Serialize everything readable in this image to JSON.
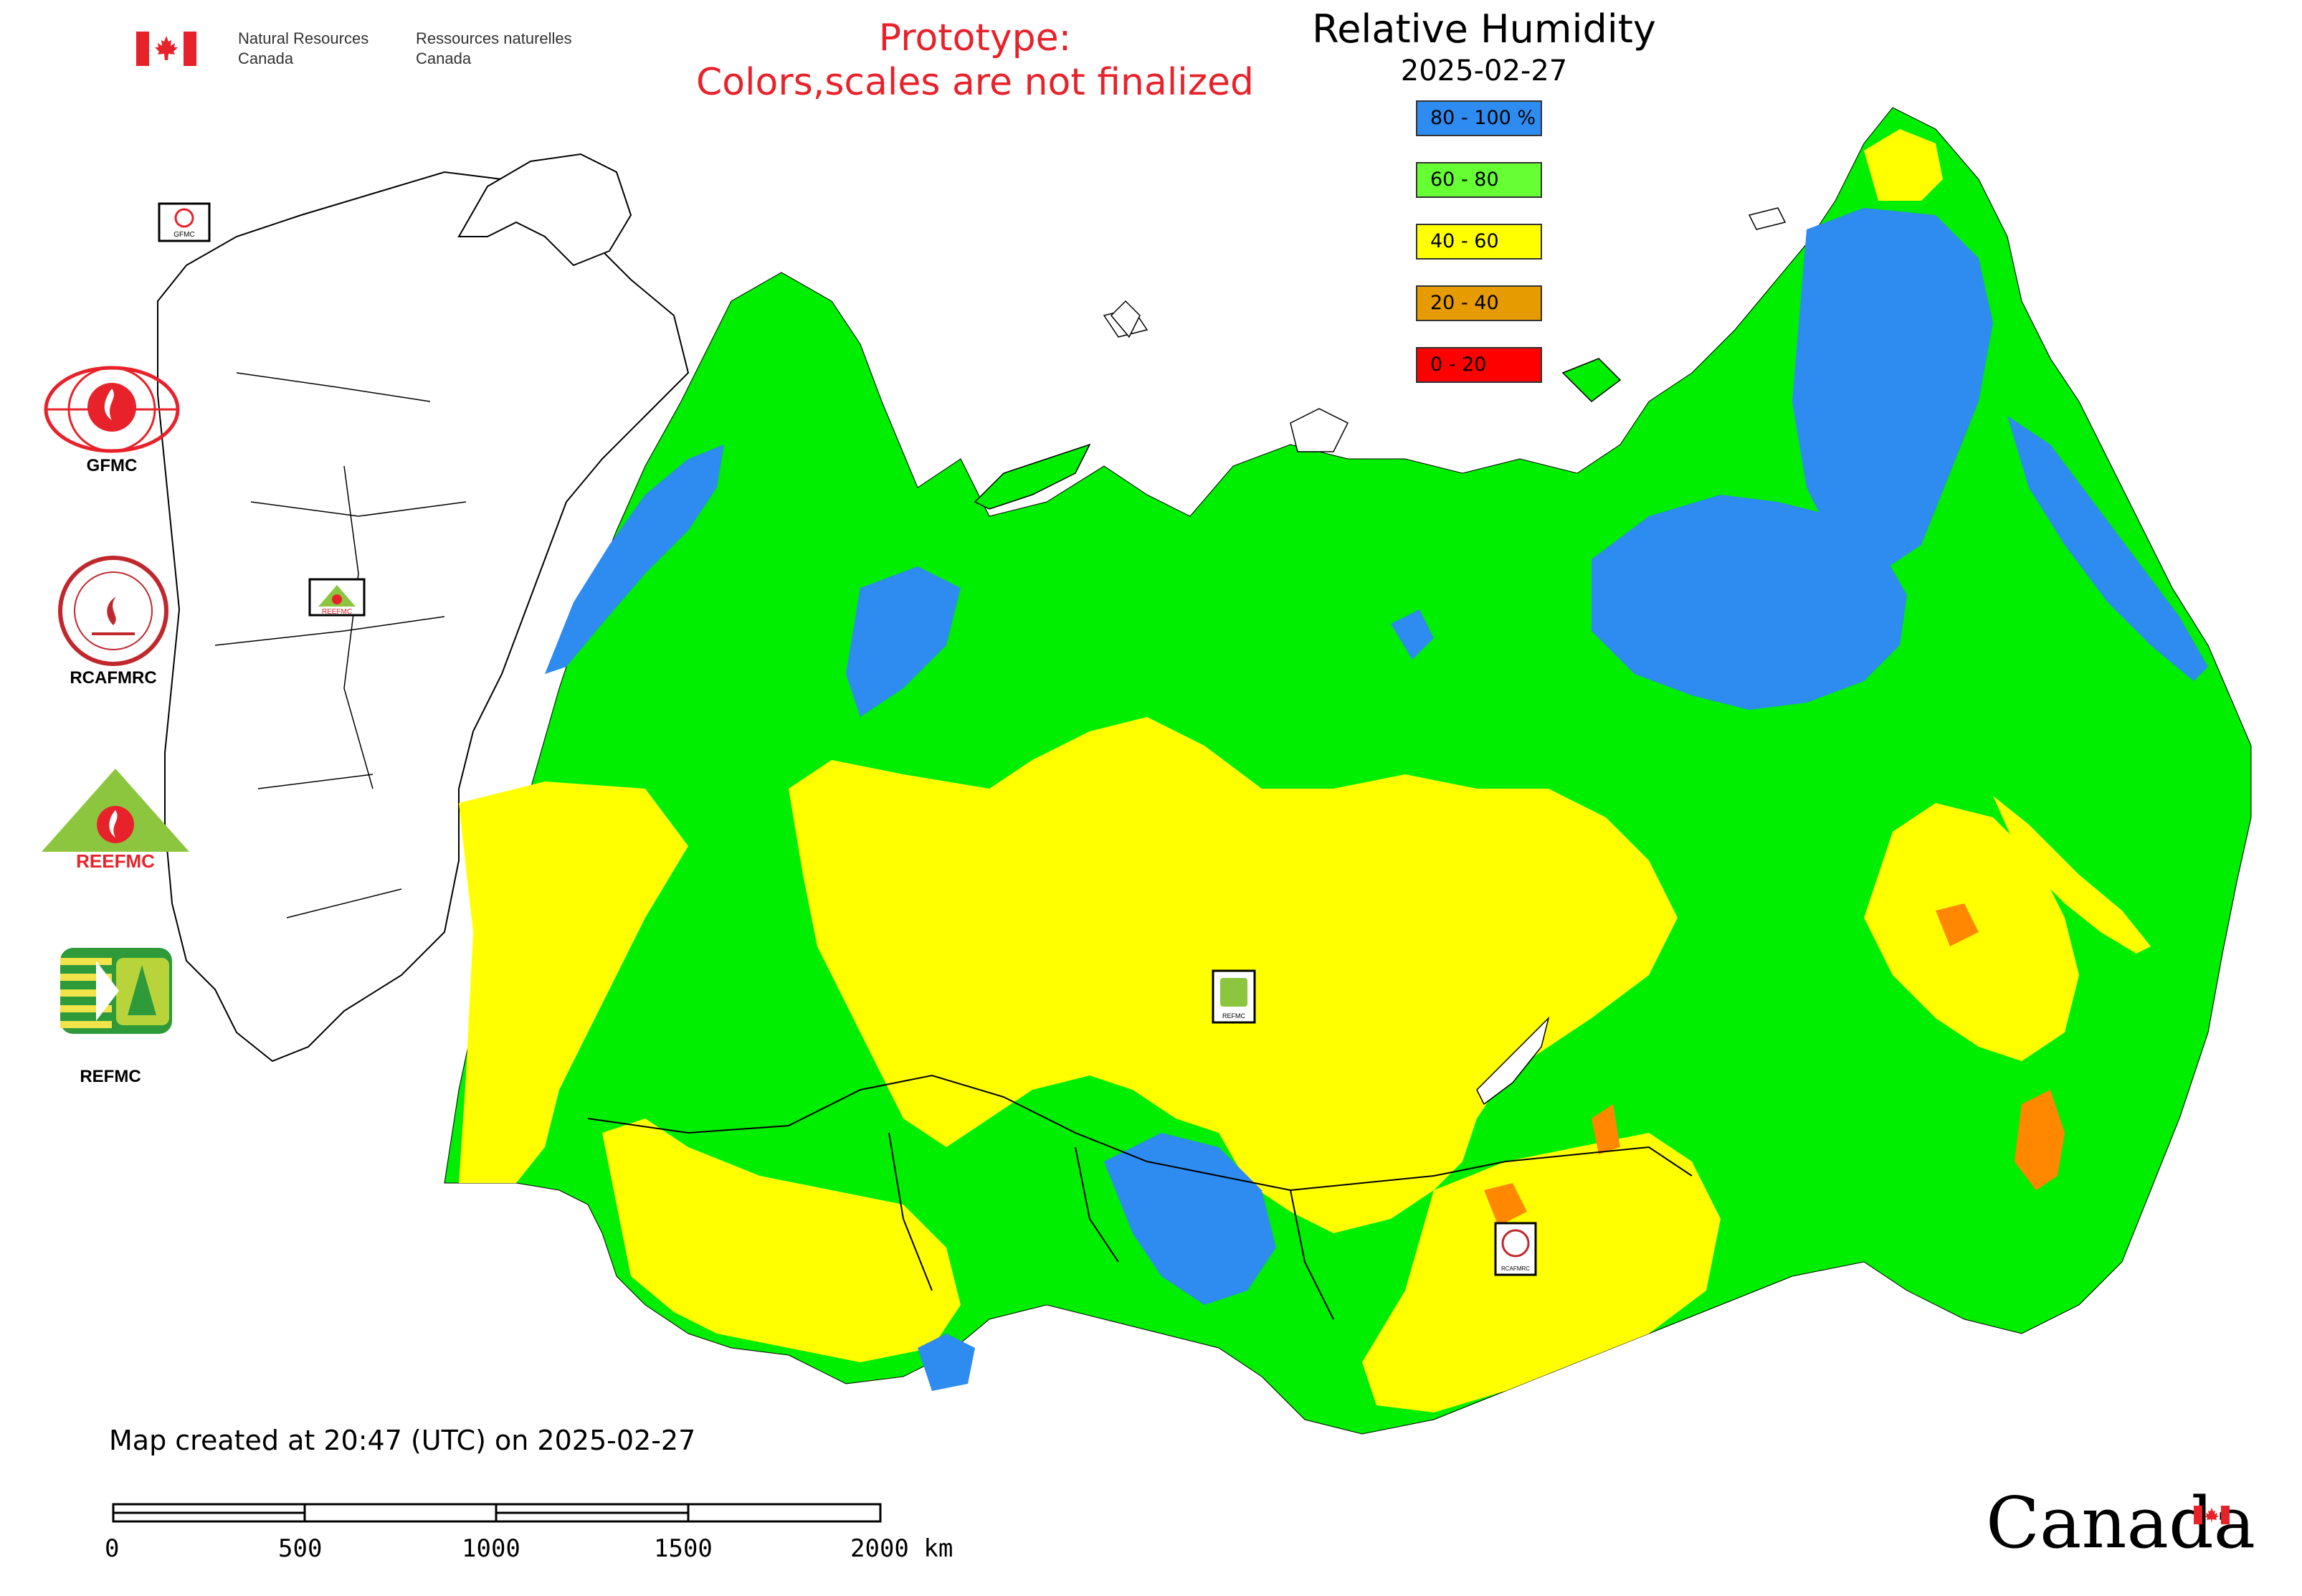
{
  "header": {
    "dept_en_line1": "Natural Resources",
    "dept_en_line2": "Canada",
    "dept_fr_line1": "Ressources naturelles",
    "dept_fr_line2": "Canada",
    "prototype_line1": "Prototype:",
    "prototype_line2": "Colors,scales are not finalized"
  },
  "legend": {
    "title": "Relative Humidity",
    "date": "2025-02-27",
    "items": [
      {
        "label": "80 - 100 %",
        "color": "#2e8bf0"
      },
      {
        "label": "60 - 80",
        "color": "#66ff33"
      },
      {
        "label": "40 - 60",
        "color": "#ffff00"
      },
      {
        "label": "20 - 40",
        "color": "#e69b00"
      },
      {
        "label": "0 - 20",
        "color": "#ff0000"
      }
    ]
  },
  "logos": {
    "gfmc": "GFMC",
    "rcafmrc": "RCAFMRC",
    "reefmc": "REEFMC",
    "refmc": "REFMC",
    "gfmc_small": "GFMC",
    "reefmc_small": "REEFMC",
    "refmc_small": "REFMC",
    "rcafmrc_small": "RCAFMRC"
  },
  "map": {
    "colors": {
      "very_high": "#2e8bf0",
      "high": "#00ee00",
      "moderate": "#ffff00",
      "low": "#ff8800",
      "border": "#000000"
    }
  },
  "footer": {
    "map_created": "Map created at 20:47 (UTC) on 2025-02-27",
    "scale_labels": [
      "0",
      "500",
      "1000",
      "1500",
      "2000 km"
    ],
    "wordmark": "Canada"
  }
}
